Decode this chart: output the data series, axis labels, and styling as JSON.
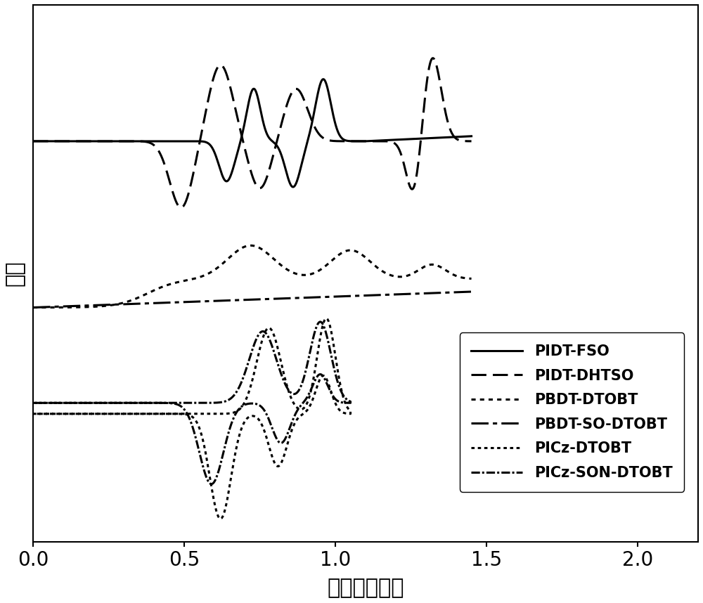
{
  "xlim": [
    0,
    2.2
  ],
  "xlabel": "电压（伏特）",
  "ylabel": "电流",
  "xticks": [
    0,
    0.5,
    1.0,
    1.5,
    2.0
  ],
  "lw": 2.2,
  "legend_labels": [
    "PIDT-FSO",
    "PIDT-DHTSO",
    "PBDT-DTOBT",
    "PBDT-SO-DTOBT",
    "PICz-DTOBT",
    "PICz-SON-DTOBT"
  ],
  "band_baselines": [
    0.55,
    0.0,
    -0.45
  ],
  "band_scale": 0.35
}
